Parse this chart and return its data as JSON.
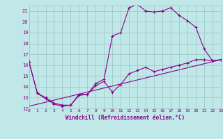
{
  "xlabel": "Windchill (Refroidissement éolien,°C)",
  "xlim": [
    0,
    23
  ],
  "ylim": [
    12,
    21.5
  ],
  "yticks": [
    12,
    13,
    14,
    15,
    16,
    17,
    18,
    19,
    20,
    21
  ],
  "xticks": [
    0,
    1,
    2,
    3,
    4,
    5,
    6,
    7,
    8,
    9,
    10,
    11,
    12,
    13,
    14,
    15,
    16,
    17,
    18,
    19,
    20,
    21,
    22,
    23
  ],
  "background_color": "#c0e8e8",
  "grid_color": "#a0c8c8",
  "line_color": "#880088",
  "line1_x": [
    0,
    1,
    2,
    3,
    4,
    5,
    6,
    7,
    8,
    9,
    10,
    11,
    12,
    13,
    14,
    15,
    16,
    17,
    18,
    19,
    20,
    21,
    22,
    23
  ],
  "line1_y": [
    16.3,
    13.4,
    13.0,
    12.5,
    12.3,
    12.3,
    13.3,
    13.3,
    14.3,
    14.7,
    18.7,
    19.0,
    21.3,
    21.6,
    21.0,
    20.9,
    21.0,
    21.3,
    20.6,
    20.1,
    19.5,
    17.5,
    16.4,
    16.5
  ],
  "line2_x": [
    0,
    1,
    2,
    3,
    4,
    5,
    6,
    7,
    8,
    9,
    10,
    11,
    12,
    13,
    14,
    15,
    16,
    17,
    18,
    19,
    20,
    21,
    22,
    23
  ],
  "line2_y": [
    16.3,
    13.4,
    12.9,
    12.4,
    12.2,
    12.3,
    13.2,
    13.3,
    14.1,
    14.5,
    13.5,
    14.2,
    15.2,
    15.5,
    15.8,
    15.4,
    15.6,
    15.8,
    16.0,
    16.2,
    16.5,
    16.5,
    16.4,
    16.5
  ],
  "line3_x": [
    0,
    23
  ],
  "line3_y": [
    12.2,
    16.5
  ]
}
